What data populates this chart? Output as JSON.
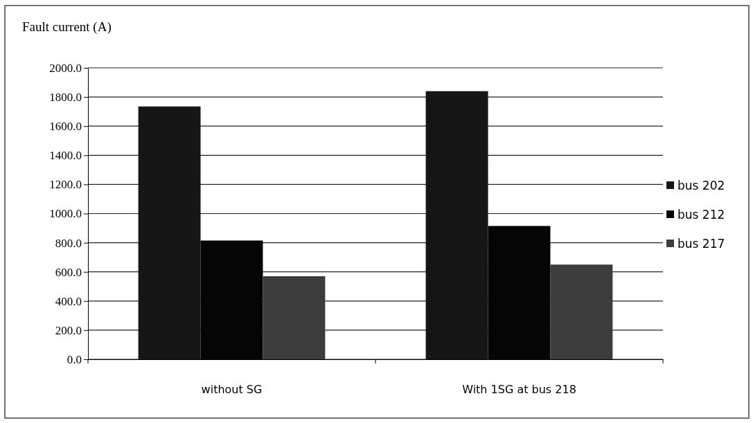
{
  "chart_data": {
    "type": "bar",
    "title": "Fault current (A)",
    "categories": [
      "without SG",
      "With 1SG at bus 218"
    ],
    "series": [
      {
        "name": "bus 202",
        "color": "#161616",
        "values": [
          1735,
          1840
        ]
      },
      {
        "name": "bus 212",
        "color": "#050505",
        "values": [
          815,
          915
        ]
      },
      {
        "name": "bus 217",
        "color": "#3c3c3c",
        "values": [
          570,
          650
        ]
      }
    ],
    "ylim": [
      0,
      2000
    ],
    "yticks": [
      {
        "value": 0,
        "label": "0.0"
      },
      {
        "value": 200,
        "label": "200.0"
      },
      {
        "value": 400,
        "label": "400.0"
      },
      {
        "value": 600,
        "label": "600.0"
      },
      {
        "value": 800,
        "label": "800.0"
      },
      {
        "value": 1000,
        "label": "1000.0"
      },
      {
        "value": 1200,
        "label": "1200.0"
      },
      {
        "value": 1400,
        "label": "1400.0"
      },
      {
        "value": 1600,
        "label": "1600.0"
      },
      {
        "value": 1800,
        "label": "1800.0"
      },
      {
        "value": 2000,
        "label": "2000.0"
      }
    ],
    "grid": "y",
    "legend": "right"
  }
}
